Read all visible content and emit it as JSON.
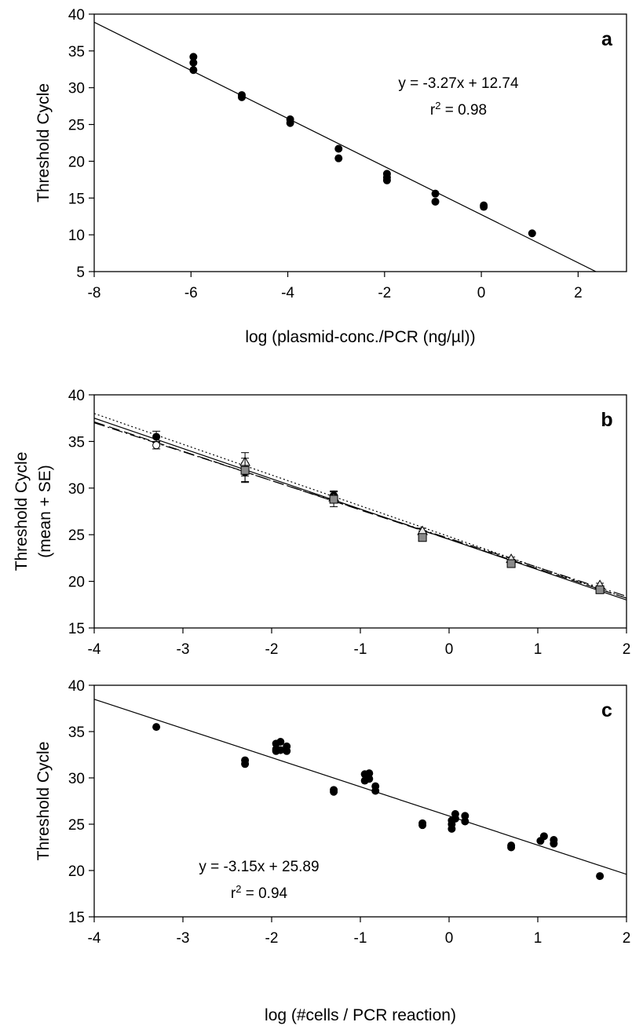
{
  "chart_data": [
    {
      "panel_label": "a",
      "type": "scatter",
      "xlabel": "log (plasmid-conc./PCR (ng/µl))",
      "ylabel": "Threshold Cycle",
      "xlim": [
        -8,
        3
      ],
      "ylim": [
        5,
        40
      ],
      "xticks": [
        -8,
        -6,
        -4,
        -2,
        0,
        2
      ],
      "yticks": [
        5,
        10,
        15,
        20,
        25,
        30,
        35,
        40
      ],
      "grid": false,
      "equation": "y = -3.27x + 12.74",
      "r2_prefix": "r",
      "r2_sup": "2",
      "r2_value": " = 0.98",
      "series": [
        {
          "marker": "filled-circle",
          "points": [
            [
              -5.95,
              34.2
            ],
            [
              -5.95,
              33.4
            ],
            [
              -5.95,
              32.4
            ],
            [
              -4.95,
              29.0
            ],
            [
              -4.95,
              28.7
            ],
            [
              -3.95,
              25.7
            ],
            [
              -3.95,
              25.2
            ],
            [
              -2.95,
              21.7
            ],
            [
              -2.95,
              20.4
            ],
            [
              -1.95,
              18.3
            ],
            [
              -1.95,
              17.8
            ],
            [
              -1.95,
              17.4
            ],
            [
              -0.95,
              15.6
            ],
            [
              -0.95,
              14.5
            ],
            [
              0.05,
              14.0
            ],
            [
              0.05,
              13.8
            ],
            [
              1.05,
              10.2
            ]
          ]
        }
      ],
      "lines": [
        {
          "slope": -3.27,
          "intercept": 12.74,
          "style": "solid"
        }
      ]
    },
    {
      "panel_label": "b",
      "type": "scatter",
      "xlabel": "",
      "ylabel": "Threshold Cycle",
      "ylabel2": "(mean + SE)",
      "xlim": [
        -4,
        2
      ],
      "ylim": [
        15,
        40
      ],
      "xticks": [
        -4,
        -3,
        -2,
        -1,
        0,
        1,
        2
      ],
      "yticks": [
        15,
        20,
        25,
        30,
        35,
        40
      ],
      "grid": false,
      "series": [
        {
          "marker": "filled-circle",
          "points": [
            [
              -3.3,
              35.5,
              0.6
            ],
            [
              -2.3,
              31.7,
              1.0
            ],
            [
              -1.3,
              29.2,
              0.5
            ],
            [
              -0.3,
              24.9,
              0.3
            ],
            [
              0.7,
              22.0,
              0.2
            ],
            [
              1.7,
              19.2,
              0.2
            ]
          ]
        },
        {
          "marker": "open-circle",
          "points": [
            [
              -3.3,
              34.6,
              0.4
            ],
            [
              -2.3,
              31.9,
              0.6
            ],
            [
              -1.3,
              28.9,
              0.4
            ],
            [
              -0.3,
              25.1,
              0.3
            ],
            [
              0.7,
              22.1,
              0.2
            ],
            [
              1.7,
              19.3,
              0.2
            ]
          ]
        },
        {
          "marker": "open-triangle",
          "points": [
            [
              -2.3,
              32.8,
              1.0
            ],
            [
              -1.3,
              29.0,
              0.6
            ],
            [
              -0.3,
              25.4,
              0.3
            ],
            [
              0.7,
              22.4,
              0.2
            ],
            [
              1.7,
              19.6,
              0.2
            ]
          ]
        },
        {
          "marker": "gray-square",
          "points": [
            [
              -2.3,
              31.9,
              1.3
            ],
            [
              -1.3,
              28.8,
              0.8
            ],
            [
              -0.3,
              24.7,
              0.3
            ],
            [
              0.7,
              21.9,
              0.2
            ],
            [
              1.7,
              19.1,
              0.2
            ]
          ]
        }
      ],
      "lines": [
        {
          "slope": -3.25,
          "intercept": 24.5,
          "style": "solid"
        },
        {
          "slope": -3.15,
          "intercept": 24.5,
          "style": "dashed"
        },
        {
          "slope": -3.3,
          "intercept": 24.8,
          "style": "dotted"
        },
        {
          "slope": -3.1,
          "intercept": 24.6,
          "style": "dashdot"
        }
      ]
    },
    {
      "panel_label": "c",
      "type": "scatter",
      "xlabel": "log (#cells / PCR reaction)",
      "ylabel": "Threshold Cycle",
      "xlim": [
        -4,
        2
      ],
      "ylim": [
        15,
        40
      ],
      "xticks": [
        -4,
        -3,
        -2,
        -1,
        0,
        1,
        2
      ],
      "yticks": [
        15,
        20,
        25,
        30,
        35,
        40
      ],
      "grid": false,
      "equation": "y = -3.15x + 25.89",
      "r2_prefix": "r",
      "r2_sup": "2",
      "r2_value": " = 0.94",
      "series": [
        {
          "marker": "filled-circle",
          "points": [
            [
              -3.3,
              35.5
            ],
            [
              -2.3,
              31.9
            ],
            [
              -2.3,
              31.5
            ],
            [
              -1.95,
              33.7
            ],
            [
              -1.95,
              33.1
            ],
            [
              -1.95,
              32.9
            ],
            [
              -1.9,
              33.9
            ],
            [
              -1.9,
              33.0
            ],
            [
              -1.83,
              33.4
            ],
            [
              -1.83,
              32.9
            ],
            [
              -1.3,
              28.7
            ],
            [
              -1.3,
              28.5
            ],
            [
              -0.95,
              30.4
            ],
            [
              -0.95,
              29.7
            ],
            [
              -0.9,
              30.5
            ],
            [
              -0.9,
              29.9
            ],
            [
              -0.83,
              29.1
            ],
            [
              -0.83,
              28.6
            ],
            [
              -0.3,
              25.1
            ],
            [
              -0.3,
              24.9
            ],
            [
              0.03,
              25.4
            ],
            [
              0.03,
              25.0
            ],
            [
              0.03,
              24.5
            ],
            [
              0.07,
              26.1
            ],
            [
              0.07,
              25.6
            ],
            [
              0.18,
              25.9
            ],
            [
              0.18,
              25.3
            ],
            [
              0.7,
              22.7
            ],
            [
              0.7,
              22.5
            ],
            [
              1.03,
              23.2
            ],
            [
              1.07,
              23.7
            ],
            [
              1.18,
              23.3
            ],
            [
              1.18,
              22.9
            ],
            [
              1.7,
              19.4
            ]
          ]
        }
      ],
      "lines": [
        {
          "slope": -3.15,
          "intercept": 25.89,
          "style": "solid"
        }
      ]
    }
  ]
}
